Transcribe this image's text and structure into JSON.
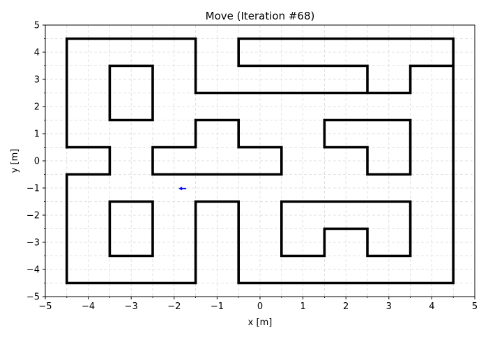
{
  "chart_data": {
    "type": "line",
    "title": "Move (Iteration #68)",
    "xlabel": "x [m]",
    "ylabel": "y [m]",
    "xlim": [
      -5,
      5
    ],
    "ylim": [
      -5,
      5
    ],
    "x_ticks": [
      -5,
      -4,
      -3,
      -2,
      -1,
      0,
      1,
      2,
      3,
      4,
      5
    ],
    "y_ticks": [
      -5,
      -4,
      -3,
      -2,
      -1,
      0,
      1,
      2,
      3,
      4,
      5
    ],
    "x_tick_labels": [
      "−5",
      "−4",
      "−3",
      "−2",
      "−1",
      "0",
      "1",
      "2",
      "3",
      "4",
      "5"
    ],
    "y_tick_labels": [
      "−5",
      "−4",
      "−3",
      "−2",
      "−1",
      "0",
      "1",
      "2",
      "3",
      "4",
      "5"
    ],
    "minor_step": 0.5,
    "grid": true,
    "grid_style": "dashed",
    "wall_color": "#000000",
    "robot_color": "#0000ff",
    "walls": [
      [
        [
          -4.5,
          0.5
        ],
        [
          -4.5,
          4.5
        ],
        [
          -1.5,
          4.5
        ],
        [
          -1.5,
          2.5
        ],
        [
          3.5,
          2.5
        ],
        [
          3.5,
          3.5
        ],
        [
          4.5,
          3.5
        ],
        [
          4.5,
          4.5
        ],
        [
          -0.5,
          4.5
        ],
        [
          -0.5,
          3.5
        ],
        [
          2.5,
          3.5
        ],
        [
          2.5,
          2.5
        ]
      ],
      [
        [
          4.5,
          3.5
        ],
        [
          4.5,
          -4.5
        ],
        [
          -0.5,
          -4.5
        ],
        [
          -0.5,
          -1.5
        ],
        [
          -1.5,
          -1.5
        ],
        [
          -1.5,
          -4.5
        ],
        [
          -4.5,
          -4.5
        ],
        [
          -4.5,
          -0.5
        ],
        [
          -3.5,
          -0.5
        ],
        [
          -3.5,
          0.5
        ],
        [
          -4.5,
          0.5
        ]
      ],
      [
        [
          -3.5,
          3.5
        ],
        [
          -2.5,
          3.5
        ],
        [
          -2.5,
          1.5
        ],
        [
          -3.5,
          1.5
        ],
        [
          -3.5,
          3.5
        ]
      ],
      [
        [
          -2.5,
          -0.5
        ],
        [
          -2.5,
          0.5
        ],
        [
          -1.5,
          0.5
        ],
        [
          -1.5,
          1.5
        ],
        [
          -0.5,
          1.5
        ],
        [
          -0.5,
          0.5
        ],
        [
          0.5,
          0.5
        ],
        [
          0.5,
          -0.5
        ],
        [
          -2.5,
          -0.5
        ]
      ],
      [
        [
          1.5,
          1.5
        ],
        [
          3.5,
          1.5
        ],
        [
          3.5,
          -0.5
        ],
        [
          2.5,
          -0.5
        ],
        [
          2.5,
          0.5
        ],
        [
          1.5,
          0.5
        ],
        [
          1.5,
          1.5
        ]
      ],
      [
        [
          -3.5,
          -1.5
        ],
        [
          -2.5,
          -1.5
        ],
        [
          -2.5,
          -3.5
        ],
        [
          -3.5,
          -3.5
        ],
        [
          -3.5,
          -1.5
        ]
      ],
      [
        [
          0.5,
          -1.5
        ],
        [
          3.5,
          -1.5
        ],
        [
          3.5,
          -3.5
        ],
        [
          2.5,
          -3.5
        ],
        [
          2.5,
          -2.5
        ],
        [
          1.5,
          -2.5
        ],
        [
          1.5,
          -3.5
        ],
        [
          0.5,
          -3.5
        ],
        [
          0.5,
          -1.5
        ]
      ]
    ],
    "robot": {
      "x": -1.8,
      "y": -1.02,
      "heading": "left"
    }
  }
}
